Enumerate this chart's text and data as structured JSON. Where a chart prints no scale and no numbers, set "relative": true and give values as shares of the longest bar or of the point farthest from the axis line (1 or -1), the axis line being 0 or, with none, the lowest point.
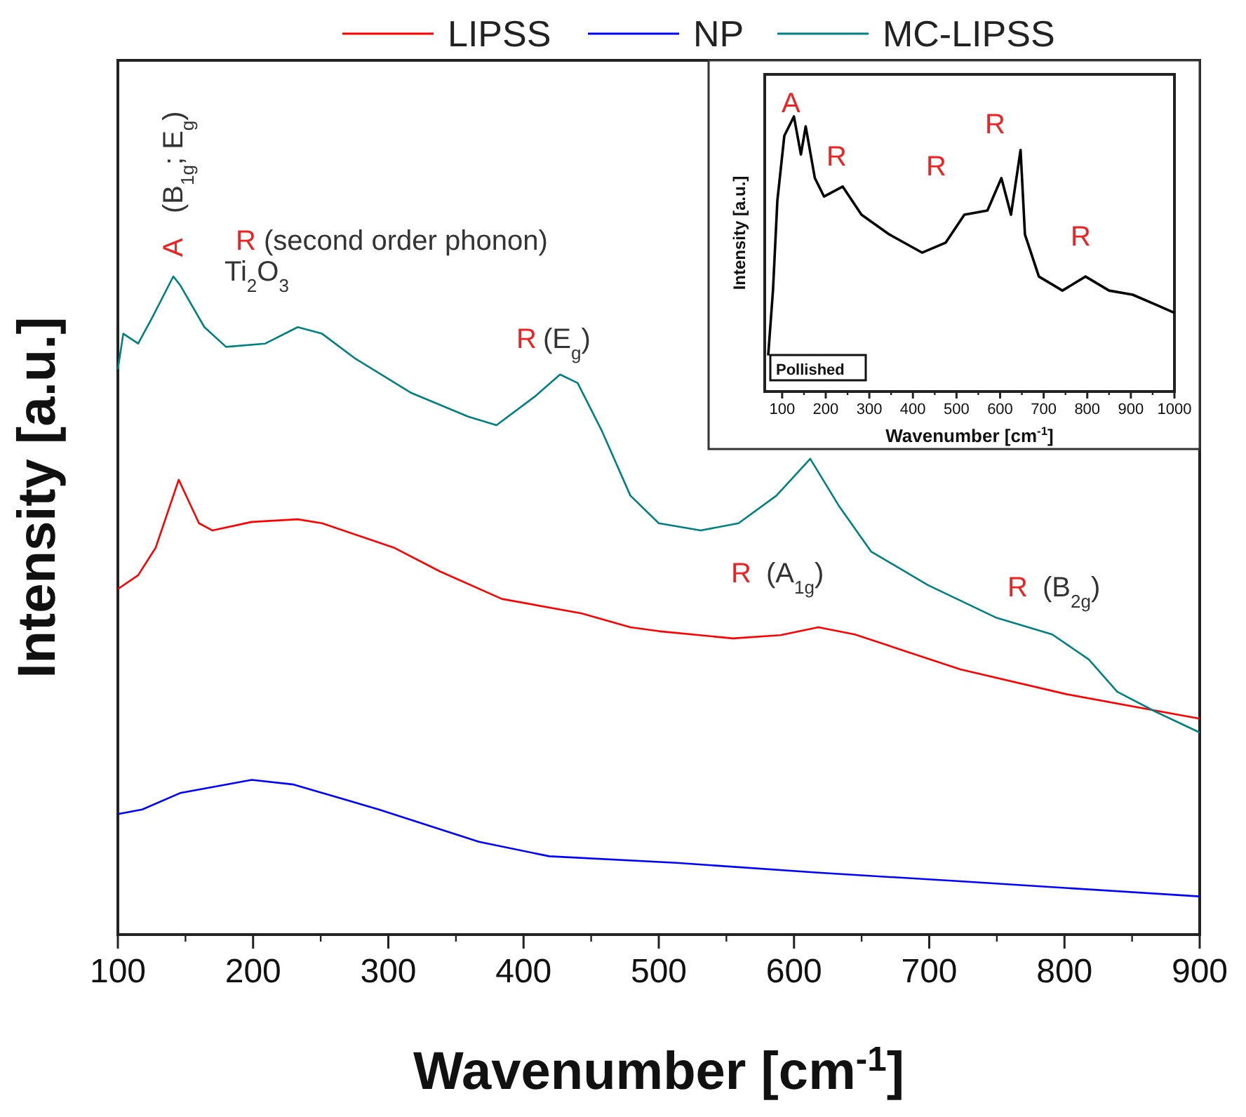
{
  "chart_data": [
    {
      "type": "line",
      "xlabel": "Wavenumber [cm$^{-1}$]",
      "ylabel": "Intensity [a.u.]",
      "relative": true,
      "xlim": [
        100,
        900
      ],
      "xticks": [
        100,
        200,
        300,
        400,
        500,
        600,
        700,
        800,
        900
      ],
      "legend": "top",
      "line_style": "solid",
      "series": [
        {
          "name": "LIPSS",
          "color": "#ff0000",
          "x": [
            100,
            115,
            128,
            145,
            160,
            170,
            199,
            233,
            251,
            304,
            338,
            384,
            443,
            479,
            500,
            555,
            590,
            618,
            645,
            723,
            802,
            900
          ],
          "values": [
            0.525,
            0.546,
            0.588,
            0.691,
            0.625,
            0.614,
            0.627,
            0.631,
            0.625,
            0.588,
            0.552,
            0.51,
            0.488,
            0.467,
            0.461,
            0.45,
            0.455,
            0.467,
            0.456,
            0.403,
            0.365,
            0.328
          ]
        },
        {
          "name": "NP",
          "color": "#0000ff",
          "x": [
            100,
            118,
            146,
            199,
            230,
            293,
            367,
            419,
            513,
            618,
            723,
            900
          ],
          "values": [
            0.183,
            0.19,
            0.215,
            0.235,
            0.228,
            0.19,
            0.141,
            0.119,
            0.109,
            0.094,
            0.081,
            0.058
          ]
        },
        {
          "name": "MC-LIPSS",
          "color": "#008080",
          "x": [
            100,
            104,
            115,
            125,
            141,
            146,
            164,
            180,
            209,
            233,
            251,
            275,
            317,
            359,
            380,
            408,
            427,
            440,
            458,
            479,
            500,
            531,
            559,
            587,
            612,
            633,
            657,
            699,
            749,
            791,
            818,
            839,
            867,
            900
          ],
          "values": [
            0.859,
            0.913,
            0.898,
            0.936,
            1.0,
            0.987,
            0.923,
            0.893,
            0.898,
            0.923,
            0.913,
            0.876,
            0.823,
            0.787,
            0.774,
            0.817,
            0.851,
            0.838,
            0.765,
            0.667,
            0.625,
            0.614,
            0.625,
            0.667,
            0.723,
            0.652,
            0.582,
            0.531,
            0.482,
            0.456,
            0.418,
            0.369,
            0.339,
            0.307
          ]
        }
      ],
      "annotations": [
        "A",
        "(B$_{1g}$; E$_{g}$)",
        "R",
        "(second order phonon)",
        "Ti$_{2}$O$_{3}$",
        "R",
        "(E$_{g}$)",
        "R",
        "(A$_{1g}$)",
        "R",
        "(B$_{2g}$)"
      ]
    },
    {
      "type": "line",
      "xlabel": "Wavenumber [cm$^{-1}$]",
      "ylabel": "Intensity [a.u.]",
      "relative": true,
      "xlim": [
        60,
        1000
      ],
      "xticks": [
        100,
        200,
        300,
        400,
        500,
        600,
        700,
        800,
        900,
        1000
      ],
      "series": [
        {
          "color": "#000000",
          "x": [
            68,
            79,
            89,
            105,
            127,
            143,
            154,
            175,
            196,
            239,
            282,
            346,
            421,
            475,
            518,
            571,
            603,
            625,
            647,
            657,
            689,
            743,
            796,
            850,
            904,
            957,
            1000
          ],
          "values": [
            0.131,
            0.369,
            0.694,
            0.93,
            1.0,
            0.862,
            0.964,
            0.776,
            0.709,
            0.745,
            0.643,
            0.571,
            0.505,
            0.541,
            0.643,
            0.658,
            0.776,
            0.643,
            0.878,
            0.571,
            0.418,
            0.367,
            0.418,
            0.367,
            0.352,
            0.316,
            0.286
          ]
        }
      ],
      "annotations": [
        "A",
        "R",
        "R",
        "R",
        "R",
        "Pollished"
      ]
    }
  ]
}
